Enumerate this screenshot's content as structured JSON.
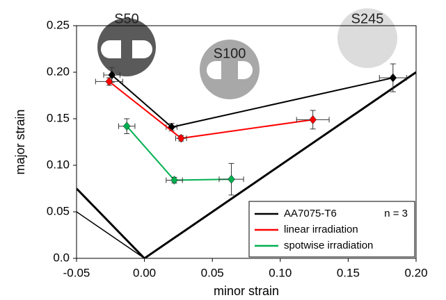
{
  "chart_data": {
    "type": "line",
    "xlabel": "minor strain",
    "ylabel": "major strain",
    "xlim": [
      -0.05,
      0.2
    ],
    "ylim": [
      0,
      0.25
    ],
    "xticks": [
      -0.05,
      {
        "value": 0,
        "label": "0.00"
      },
      0.05,
      {
        "value": 0.1,
        "label": "0.10"
      },
      0.15,
      {
        "value": 0.2,
        "label": "0.20"
      }
    ],
    "yticks": [
      {
        "value": 0,
        "label": "0.0"
      },
      0.05,
      {
        "value": 0.1,
        "label": "0.10"
      },
      0.15,
      {
        "value": 0.2,
        "label": "0.20"
      },
      0.25
    ],
    "series": [
      {
        "name": "AA7075-T6",
        "color": "#000000",
        "x": [
          -0.024,
          0.02,
          0.183
        ],
        "values": [
          0.197,
          0.141,
          0.194
        ],
        "xerr": [
          0.006,
          0.004,
          0.01
        ],
        "yerr": [
          0.008,
          0.004,
          0.015
        ]
      },
      {
        "name": "linear irradiation",
        "color": "#ff0000",
        "x": [
          -0.026,
          0.027,
          0.124
        ],
        "values": [
          0.19,
          0.129,
          0.149
        ],
        "xerr": [
          0.01,
          0.004,
          0.012
        ],
        "yerr": [
          0.004,
          0.003,
          0.01
        ]
      },
      {
        "name": "spotwise irradiation",
        "color": "#00b050",
        "x": [
          -0.013,
          0.022,
          0.064
        ],
        "values": [
          0.142,
          0.084,
          0.085
        ],
        "xerr": [
          0.006,
          0.006,
          0.009
        ],
        "yerr": [
          0.008,
          0.003,
          0.017
        ]
      }
    ],
    "reference_lines": [
      {
        "x": [
          -0.05,
          0,
          0.2
        ],
        "y": [
          0.075,
          0,
          0.2
        ],
        "width": 3
      },
      {
        "x": [
          -0.05,
          0
        ],
        "y": [
          0.05,
          0
        ],
        "width": 1.5
      }
    ],
    "legend_note": "n = 3",
    "annotations": [
      "S50",
      "S100",
      "S245"
    ],
    "legend": "lower right"
  }
}
